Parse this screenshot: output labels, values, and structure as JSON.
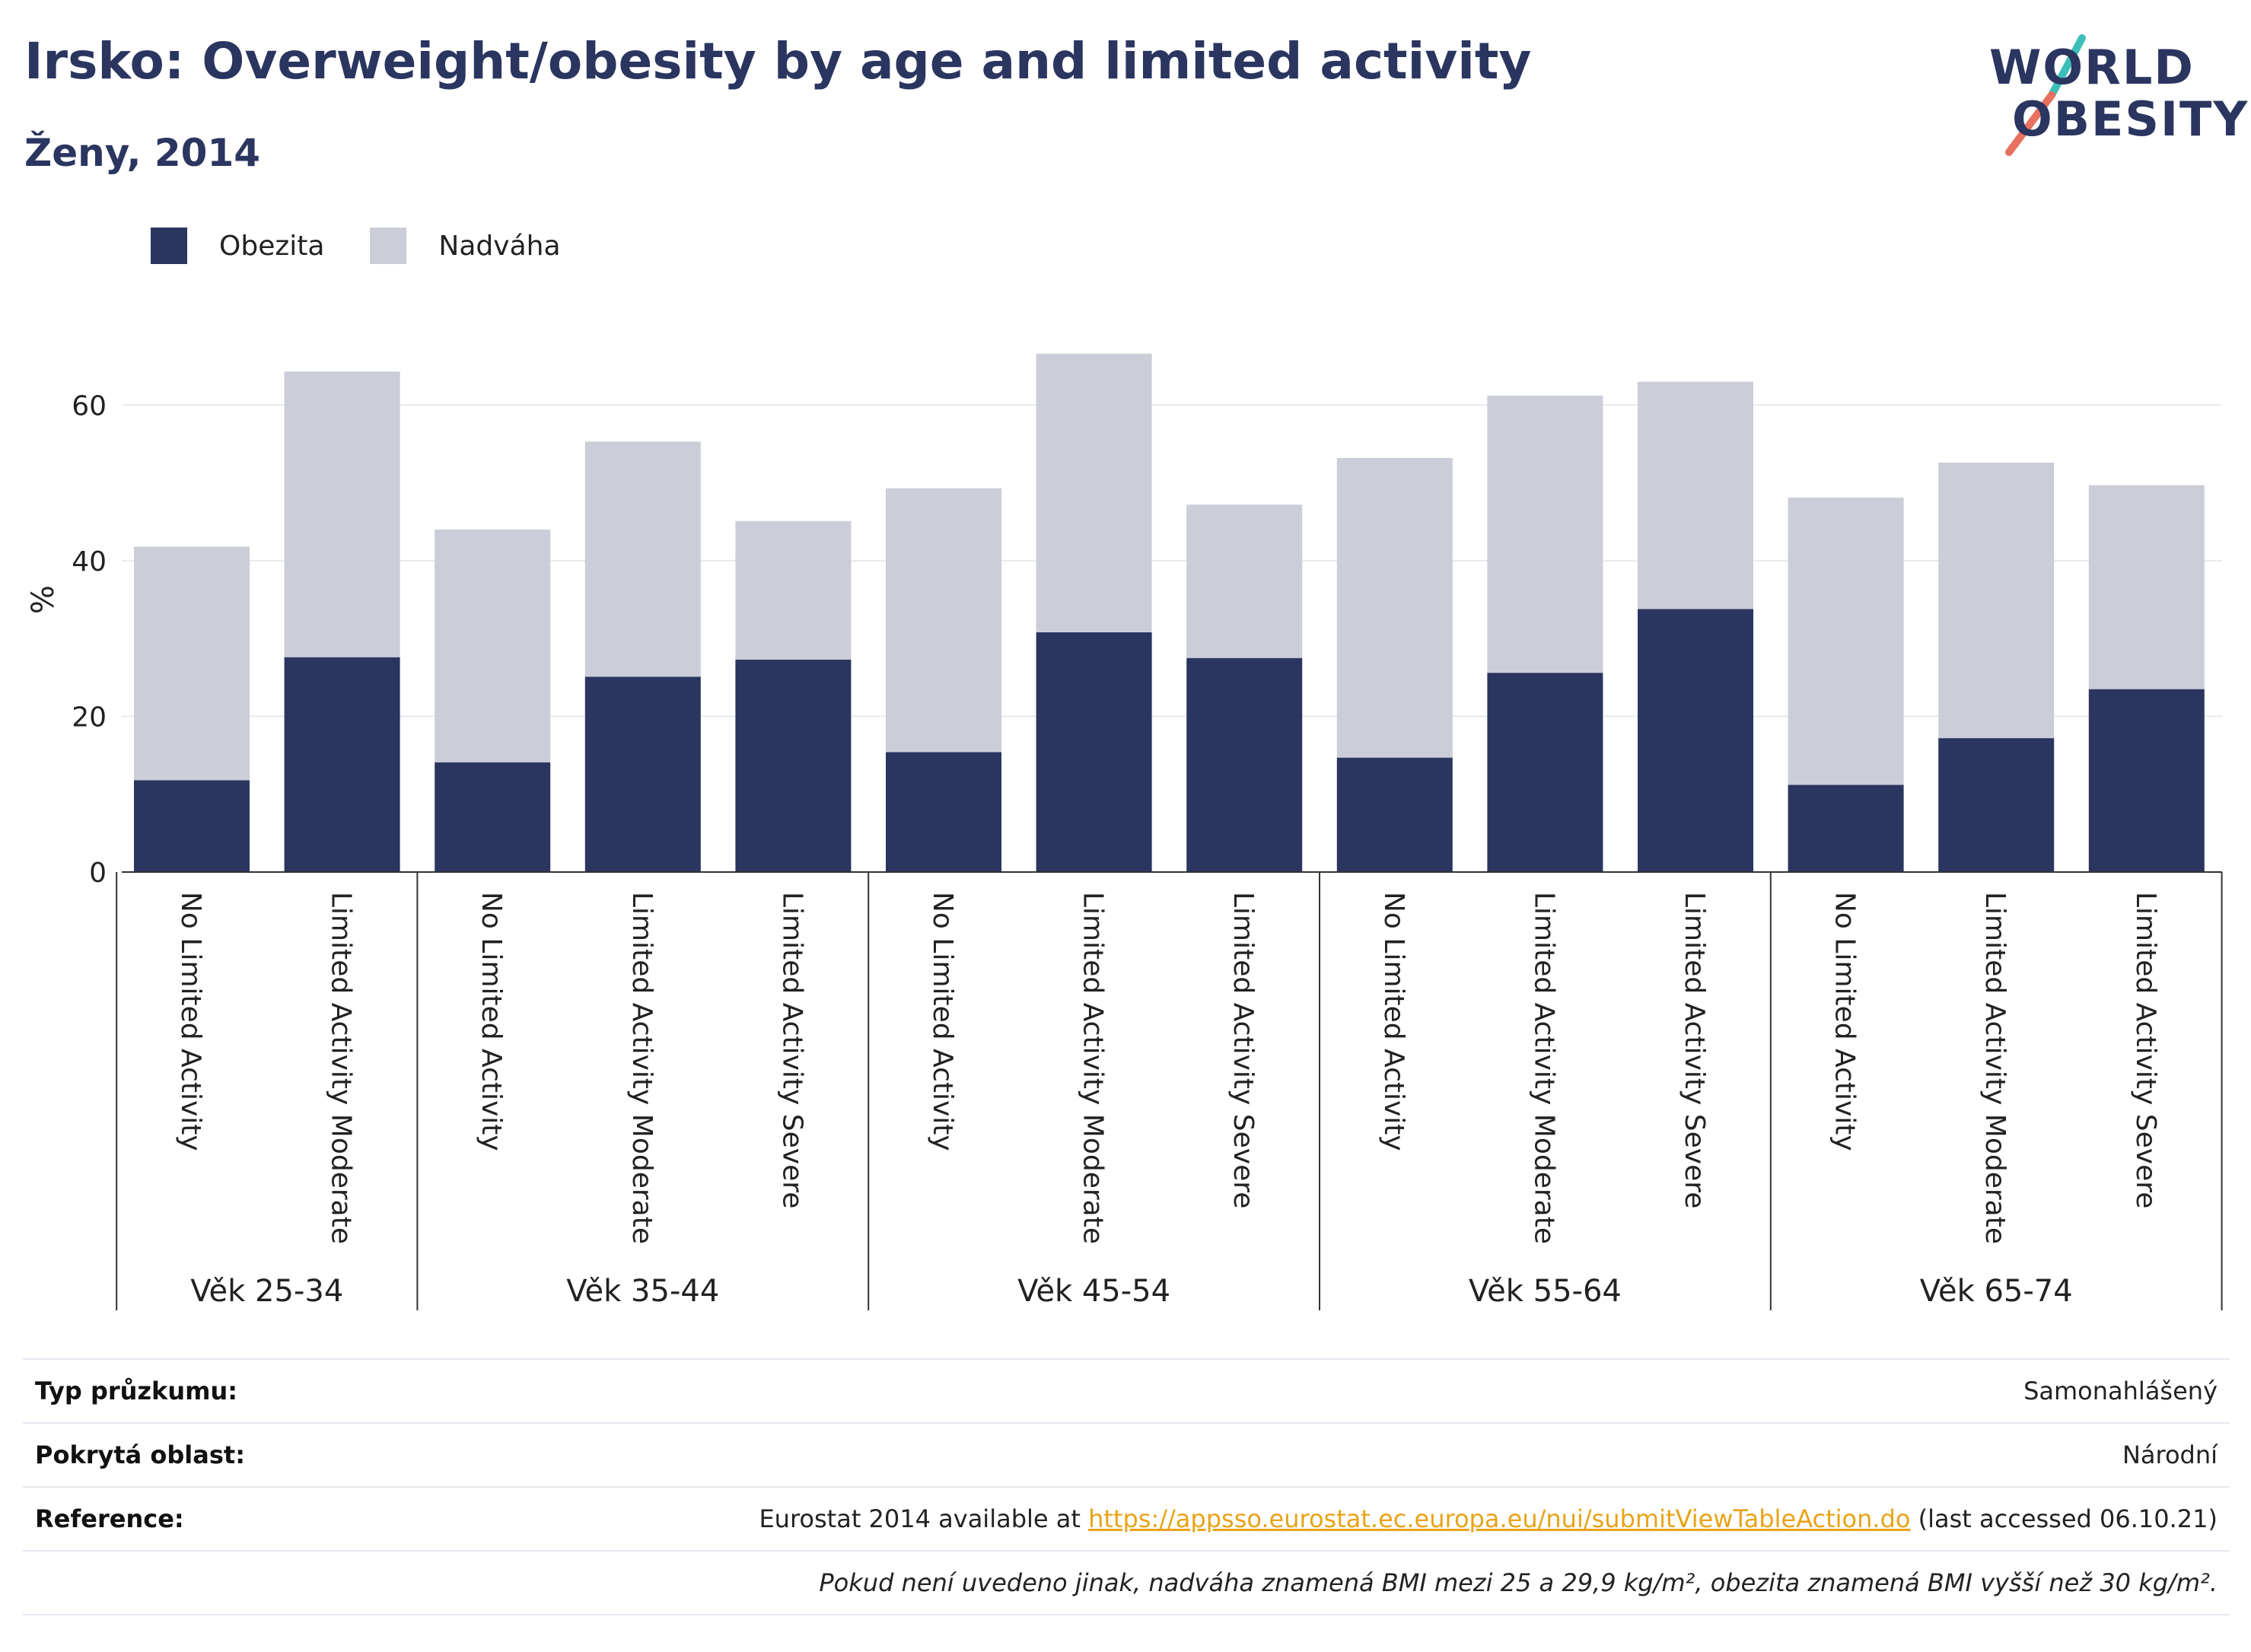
{
  "title": "Irsko: Overweight/obesity by age and limited activity",
  "subtitle": "Ženy, 2014",
  "logo": {
    "line1": "WORLD",
    "line2": "OBESITY"
  },
  "colors": {
    "obesity": "#2a3560",
    "overweight": "#cbcdd8",
    "grid": "#e8e9ef",
    "axis": "#333333",
    "logo_teal": "#3bbfb8",
    "logo_coral": "#e8705f"
  },
  "chart_data": {
    "type": "bar",
    "stacked": true,
    "ylabel": "%",
    "ylim": [
      0,
      70
    ],
    "yticks": [
      0,
      20,
      40,
      60
    ],
    "grid": true,
    "legend_position": "top-left",
    "groups": [
      {
        "label": "Věk 25-34",
        "categories": [
          "No Limited Activity",
          "Limited Activity Moderate"
        ]
      },
      {
        "label": "Věk 35-44",
        "categories": [
          "No Limited Activity",
          "Limited Activity Moderate",
          "Limited Activity Severe"
        ]
      },
      {
        "label": "Věk 45-54",
        "categories": [
          "No Limited Activity",
          "Limited Activity Moderate",
          "Limited Activity Severe"
        ]
      },
      {
        "label": "Věk 55-64",
        "categories": [
          "No Limited Activity",
          "Limited Activity Moderate",
          "Limited Activity Severe"
        ]
      },
      {
        "label": "Věk 65-74",
        "categories": [
          "No Limited Activity",
          "Limited Activity Moderate",
          "Limited Activity Severe"
        ]
      }
    ],
    "series": [
      {
        "name": "Obezita",
        "values": [
          11.8,
          27.6,
          14.1,
          25.1,
          27.3,
          15.4,
          30.8,
          27.5,
          14.7,
          25.6,
          33.8,
          11.2,
          17.2,
          23.5
        ]
      },
      {
        "name": "Nadváha",
        "values": [
          30.0,
          36.7,
          29.9,
          30.2,
          17.8,
          33.9,
          35.8,
          19.7,
          38.5,
          35.6,
          29.2,
          36.9,
          35.4,
          26.2
        ]
      }
    ]
  },
  "meta": {
    "survey_type_label": "Typ průzkumu:",
    "survey_type_value": "Samonahlášený",
    "coverage_label": "Pokrytá oblast:",
    "coverage_value": "Národní",
    "reference_label": "Reference:",
    "reference_prefix": "Eurostat 2014 available at ",
    "reference_link": "https://appsso.eurostat.ec.europa.eu/nui/submitViewTableAction.do",
    "reference_suffix": " (last accessed 06.10.21)",
    "note": "Pokud není uvedeno jinak, nadváha znamená BMI mezi 25 a 29,9 kg/m², obezita znamená BMI vyšší než 30 kg/m²."
  }
}
